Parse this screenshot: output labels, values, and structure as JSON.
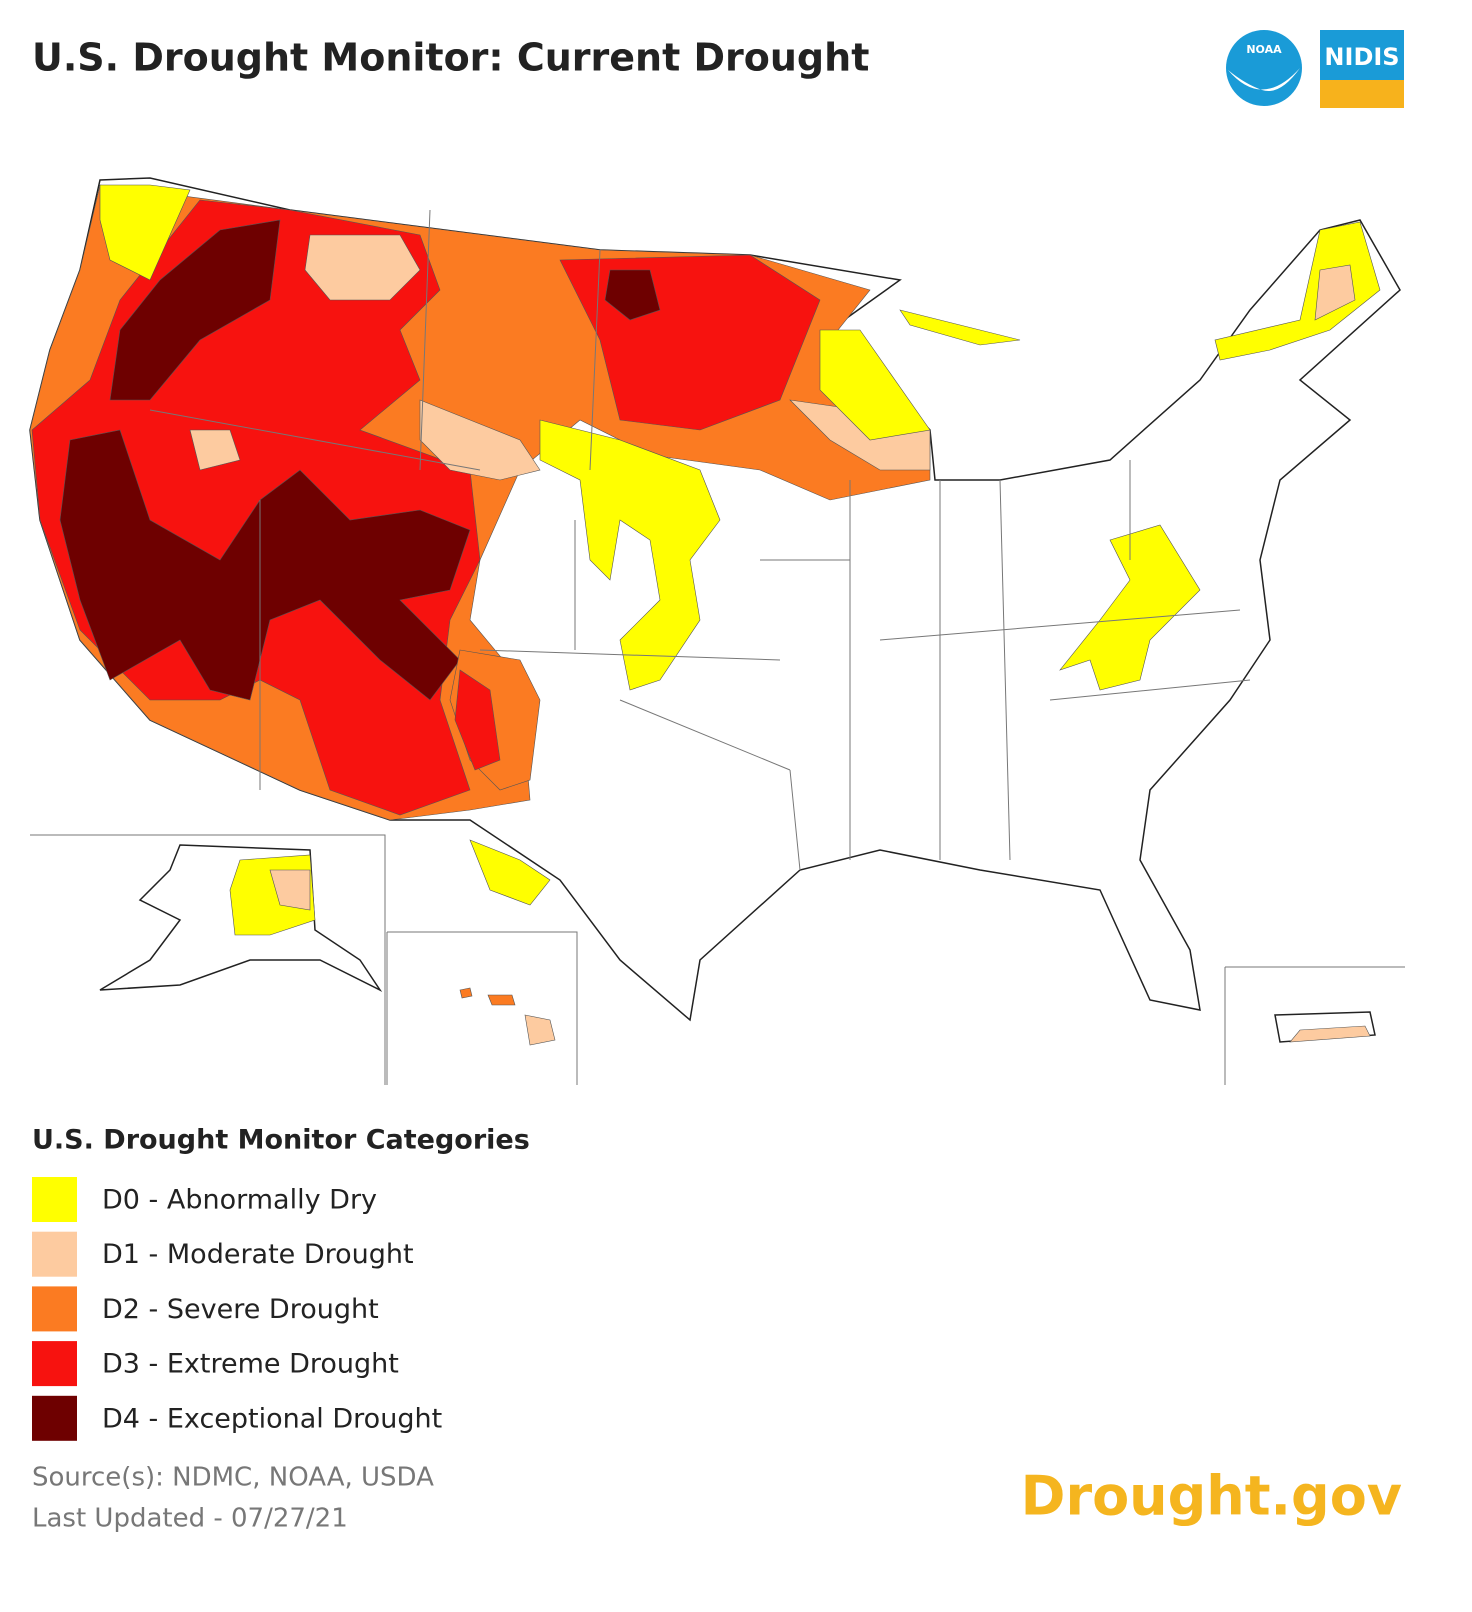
{
  "header": {
    "title": "U.S. Drought Monitor: Current Drought",
    "logos": [
      "NOAA",
      "NIDIS"
    ]
  },
  "legend": {
    "title": "U.S. Drought Monitor Categories",
    "items": [
      {
        "label": "D0 - Abnormally Dry",
        "color": "#ffff00"
      },
      {
        "label": "D1 - Moderate Drought",
        "color": "#fdcba0"
      },
      {
        "label": "D2 - Severe Drought",
        "color": "#fb7b22"
      },
      {
        "label": "D3 - Extreme Drought",
        "color": "#f7120f"
      },
      {
        "label": "D4 - Exceptional Drought",
        "color": "#6e0000"
      }
    ]
  },
  "footer": {
    "source": "Source(s): NDMC, NOAA, USDA",
    "updated": "Last Updated - 07/27/21",
    "site": "Drought.gov"
  }
}
